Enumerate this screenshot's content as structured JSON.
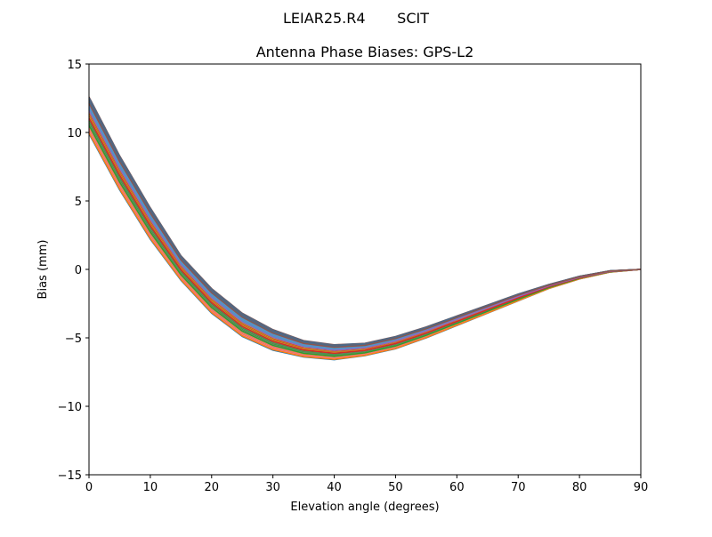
{
  "chart_data": {
    "type": "line",
    "suptitle": "LEIAR25.R4       SCIT",
    "title": "Antenna Phase Biases: GPS-L2",
    "xlabel": "Elevation angle (degrees)",
    "ylabel": "Bias (mm)",
    "xlim": [
      0,
      90
    ],
    "ylim": [
      -15,
      15
    ],
    "xticks": [
      0,
      10,
      20,
      30,
      40,
      50,
      60,
      70,
      80,
      90
    ],
    "yticks": [
      -15,
      -10,
      -5,
      0,
      5,
      10,
      15
    ],
    "ytick_labels": [
      "−15",
      "−10",
      "−5",
      "0",
      "5",
      "10",
      "15"
    ],
    "grid": false,
    "legend": "none",
    "x": [
      0,
      5,
      10,
      15,
      20,
      25,
      30,
      35,
      40,
      45,
      50,
      55,
      60,
      65,
      70,
      75,
      80,
      85,
      90
    ],
    "series_envelope": {
      "upper": [
        12.6,
        8.3,
        4.5,
        1.0,
        -1.4,
        -3.2,
        -4.4,
        -5.2,
        -5.5,
        -5.4,
        -4.9,
        -4.2,
        -3.4,
        -2.6,
        -1.8,
        -1.1,
        -0.5,
        -0.1,
        0.0
      ],
      "lower": [
        9.9,
        5.8,
        2.2,
        -0.8,
        -3.2,
        -4.9,
        -5.9,
        -6.4,
        -6.6,
        -6.3,
        -5.8,
        -5.0,
        -4.1,
        -3.2,
        -2.3,
        -1.4,
        -0.7,
        -0.2,
        0.0
      ]
    },
    "colors": [
      "#1f77b4",
      "#ff7f0e",
      "#2ca02c",
      "#d62728",
      "#9467bd",
      "#8c564b",
      "#e377c2",
      "#7f7f7f",
      "#bcbd22",
      "#17becf"
    ]
  }
}
